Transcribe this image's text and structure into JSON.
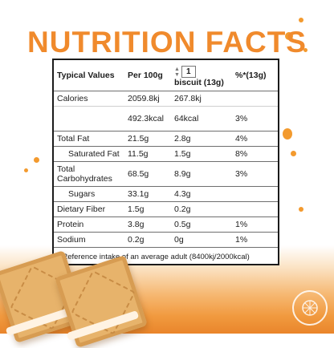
{
  "title": "NUTRITION FACTS",
  "table": {
    "headers": {
      "label": "Typical Values",
      "per100": "Per 100g",
      "stepper_value": "1",
      "biscuit": "biscuit (13g)",
      "percent": "%*(13g)"
    },
    "rows": [
      {
        "label": "Calories",
        "per100": "2059.8kj",
        "biscuit": "267.8kj",
        "percent": ""
      },
      {
        "label": "",
        "per100": "492.3kcal",
        "biscuit": "64kcal",
        "percent": "3%"
      },
      {
        "label": "Total Fat",
        "per100": "21.5g",
        "biscuit": "2.8g",
        "percent": "4%"
      },
      {
        "label": "Saturated Fat",
        "per100": "11.5g",
        "biscuit": "1.5g",
        "percent": "8%"
      },
      {
        "label": "Total Carbohydrates",
        "per100": "68.5g",
        "biscuit": "8.9g",
        "percent": "3%"
      },
      {
        "label": "Sugars",
        "per100": "33.1g",
        "biscuit": "4.3g",
        "percent": ""
      },
      {
        "label": "Dietary Fiber",
        "per100": "1.5g",
        "biscuit": "0.2g",
        "percent": ""
      },
      {
        "label": "Protein",
        "per100": "3.8g",
        "biscuit": "0.5g",
        "percent": "1%"
      },
      {
        "label": "Sodium",
        "per100": "0.2g",
        "biscuit": "0g",
        "percent": "1%"
      }
    ],
    "footnote": "* Reference intake of an average adult (8400kj/2000kcal)"
  },
  "colors": {
    "title": "#f08a2c",
    "accent": "#f39a2e"
  },
  "icons": {
    "stepper": "up-down-arrows-icon",
    "logo": "orange-badge-icon"
  }
}
